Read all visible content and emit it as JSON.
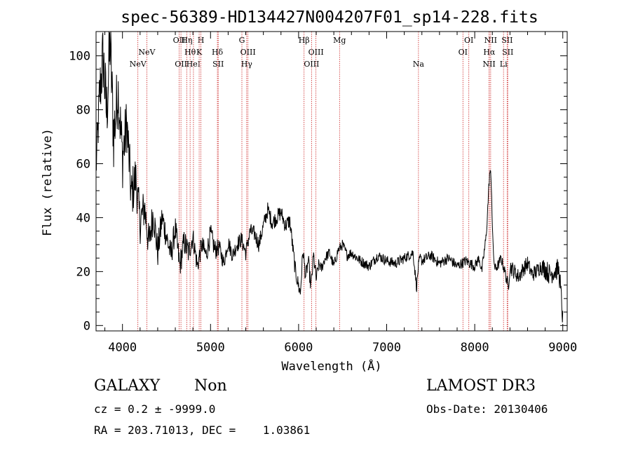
{
  "chart_data": {
    "type": "line",
    "title": "spec-56389-HD134427N004207F01_sp14-228.fits",
    "xlabel": "Wavelength (Å)",
    "ylabel": "Flux (relative)",
    "xlim": [
      3700,
      9050
    ],
    "ylim": [
      -2,
      109
    ],
    "x_ticks": [
      4000,
      5000,
      6000,
      7000,
      8000,
      9000
    ],
    "y_ticks": [
      0,
      20,
      40,
      60,
      80,
      100
    ],
    "series": [
      {
        "name": "flux",
        "color": "#000000",
        "x": [
          3700,
          3740,
          3780,
          3820,
          3860,
          3900,
          3950,
          4000,
          4050,
          4100,
          4150,
          4200,
          4250,
          4300,
          4350,
          4400,
          4450,
          4500,
          4550,
          4600,
          4650,
          4700,
          4750,
          4800,
          4850,
          4900,
          4950,
          5000,
          5050,
          5100,
          5150,
          5200,
          5250,
          5300,
          5350,
          5400,
          5450,
          5500,
          5550,
          5600,
          5650,
          5700,
          5750,
          5800,
          5850,
          5900,
          5930,
          5960,
          5990,
          6020,
          6050,
          6080,
          6110,
          6140,
          6170,
          6200,
          6230,
          6260,
          6300,
          6350,
          6400,
          6450,
          6500,
          6550,
          6600,
          6700,
          6800,
          6900,
          7000,
          7100,
          7200,
          7300,
          7340,
          7360,
          7380,
          7400,
          7500,
          7600,
          7700,
          7800,
          7900,
          8000,
          8050,
          8080,
          8110,
          8130,
          8150,
          8170,
          8180,
          8190,
          8200,
          8210,
          8230,
          8260,
          8300,
          8350,
          8380,
          8400,
          8450,
          8500,
          8550,
          8600,
          8650,
          8700,
          8750,
          8800,
          8850,
          8900,
          8950,
          8970,
          9000
        ],
        "values": [
          58,
          85,
          100,
          78,
          105,
          70,
          88,
          62,
          75,
          48,
          55,
          38,
          44,
          30,
          42,
          27,
          40,
          33,
          26,
          36,
          22,
          31,
          27,
          33,
          22,
          30,
          26,
          34,
          28,
          29,
          23,
          31,
          26,
          30,
          32,
          27,
          35,
          34,
          30,
          37,
          43,
          38,
          40,
          42,
          37,
          39,
          30,
          21,
          16,
          12,
          28,
          18,
          24,
          14,
          26,
          17,
          23,
          21,
          25,
          27,
          22,
          28,
          30,
          26,
          27,
          24,
          22,
          26,
          24,
          23,
          25,
          27,
          14,
          22,
          25,
          24,
          26,
          23,
          25,
          22,
          24,
          22,
          25,
          20,
          28,
          33,
          45,
          57,
          56,
          52,
          38,
          27,
          21,
          22,
          25,
          19,
          14,
          22,
          20,
          18,
          21,
          23,
          19,
          20,
          22,
          21,
          19,
          20,
          21,
          16,
          2
        ],
        "noise": [
          8,
          12,
          14,
          14,
          14,
          14,
          12,
          12,
          11,
          10,
          9,
          8,
          8,
          7,
          7,
          6,
          6,
          5,
          5,
          5,
          5,
          5,
          5,
          4,
          4,
          4,
          4,
          4,
          4,
          3,
          3,
          3,
          3,
          3,
          3,
          3,
          3,
          3,
          3,
          3,
          3,
          3,
          3,
          3,
          3,
          3,
          3,
          3,
          3,
          3,
          3,
          3,
          3,
          3,
          3,
          3,
          2,
          2,
          2,
          2,
          2,
          2,
          2,
          2,
          2,
          2,
          2,
          2,
          2,
          2,
          2,
          2,
          2,
          2,
          2,
          2,
          2,
          2,
          2,
          2,
          2,
          2,
          2,
          2,
          2,
          2,
          2,
          2,
          2,
          2,
          2,
          2,
          2,
          2,
          2,
          2,
          3,
          3,
          3,
          3,
          3,
          3,
          3,
          3,
          3,
          4,
          4,
          4,
          4,
          4,
          4
        ]
      }
    ],
    "lines": [
      {
        "wave": 4175,
        "label": "NeV",
        "row": 2
      },
      {
        "wave": 4277,
        "label": "NeV",
        "row": 1
      },
      {
        "wave": 4643,
        "label": "OII",
        "row": 0
      },
      {
        "wave": 4664,
        "label": "OII",
        "row": 2
      },
      {
        "wave": 4730,
        "label": "Hη",
        "row": 0
      },
      {
        "wave": 4768,
        "label": "Hθ",
        "row": 1
      },
      {
        "wave": 4806,
        "label": "HeI",
        "row": 2
      },
      {
        "wave": 4891,
        "label": "H",
        "row": 0
      },
      {
        "wave": 4871,
        "label": "K",
        "row": 1
      },
      {
        "wave": 5078,
        "label": "Hδ",
        "row": 1
      },
      {
        "wave": 5087,
        "label": "SII",
        "row": 2
      },
      {
        "wave": 5356,
        "label": "G",
        "row": 0
      },
      {
        "wave": 5425,
        "label": "OIII",
        "row": 1
      },
      {
        "wave": 5410,
        "label": "Hγ",
        "row": 2
      },
      {
        "wave": 6062,
        "label": "Hβ",
        "row": 0
      },
      {
        "wave": 6197,
        "label": "OIII",
        "row": 1
      },
      {
        "wave": 6147,
        "label": "OIII",
        "row": 2
      },
      {
        "wave": 6465,
        "label": "Mg",
        "row": 0
      },
      {
        "wave": 7361,
        "label": "Na",
        "row": 2
      },
      {
        "wave": 7933,
        "label": "OI",
        "row": 0
      },
      {
        "wave": 7866,
        "label": "OI",
        "row": 1
      },
      {
        "wave": 8181,
        "label": "NII",
        "row": 0
      },
      {
        "wave": 8165,
        "label": "Hα",
        "row": 1
      },
      {
        "wave": 8163,
        "label": "NII",
        "row": 2
      },
      {
        "wave": 8368,
        "label": "SII",
        "row": 0
      },
      {
        "wave": 8375,
        "label": "SII",
        "row": 1
      },
      {
        "wave": 8327,
        "label": "Li",
        "row": 2
      }
    ]
  },
  "footer": {
    "class_label": "GALAXY",
    "subclass_label": "Non",
    "survey_label": "LAMOST DR3",
    "cz_text": "cz = 0.2 ± -9999.0",
    "obs_date_text": "Obs-Date: 20130406",
    "radec_text": "RA = 203.71013, DEC =    1.03861"
  },
  "colors": {
    "line_marker": "#cc2222",
    "spectrum": "#000000",
    "axes": "#000000"
  }
}
